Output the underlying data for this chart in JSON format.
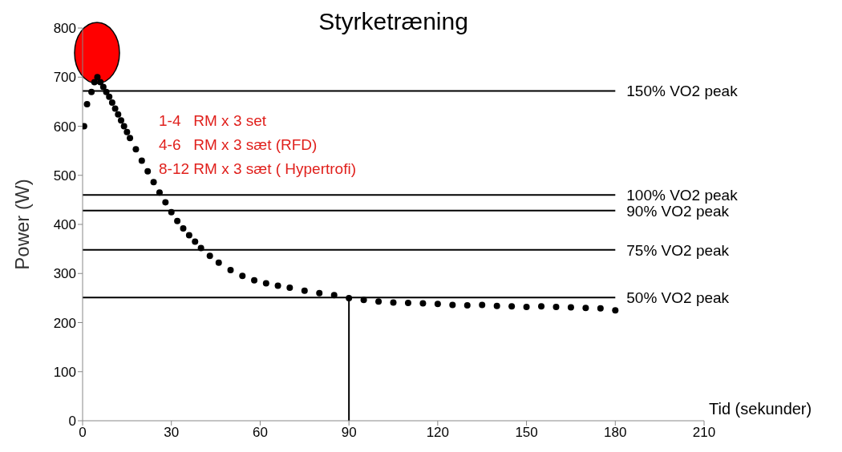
{
  "chart_data": {
    "type": "scatter",
    "title": "Styrketræning",
    "xlabel": "Tid (sekunder)",
    "ylabel": "Power  (W)",
    "annotations": [
      "1-4   RM x 3 set",
      "4-6   RM x 3 sæt (RFD)",
      "8-12 RM x 3 sæt ( Hypertrofi)"
    ],
    "series": [
      {
        "color": "#000000",
        "x": [
          0.5,
          1.5,
          3,
          4,
          5,
          6,
          7,
          8,
          9,
          10,
          11,
          12,
          13,
          14,
          15,
          16,
          18,
          20,
          22,
          24,
          26,
          28,
          30,
          32,
          34,
          36,
          38,
          40,
          43,
          46,
          50,
          54,
          58,
          62,
          66,
          70,
          75,
          80,
          85,
          90,
          95,
          100,
          105,
          110,
          115,
          120,
          125,
          130,
          135,
          140,
          145,
          150,
          155,
          160,
          165,
          170,
          175,
          180
        ],
        "values": [
          600,
          645,
          670,
          690,
          700,
          690,
          680,
          670,
          660,
          648,
          636,
          624,
          612,
          600,
          588,
          576,
          553,
          530,
          508,
          486,
          465,
          445,
          425,
          407,
          392,
          378,
          365,
          352,
          336,
          322,
          307,
          295,
          286,
          280,
          275,
          271,
          265,
          260,
          256,
          250,
          246,
          243,
          241,
          240,
          239,
          238,
          236,
          235,
          236,
          234,
          233,
          232,
          233,
          232,
          231,
          230,
          229,
          225
        ]
      }
    ],
    "xlim": [
      0,
      210
    ],
    "xticks": [
      0,
      30,
      60,
      90,
      120,
      150,
      180,
      210
    ],
    "ylim": [
      0,
      800
    ],
    "yticks": [
      0,
      100,
      200,
      300,
      400,
      500,
      600,
      700,
      800
    ],
    "grid": false,
    "legend": false,
    "marker": "circle",
    "ref_lines": [
      {
        "axis": "y",
        "value": 672,
        "label": "150% VO2 peak"
      },
      {
        "axis": "y",
        "value": 460,
        "label": "100% VO2 peak"
      },
      {
        "axis": "y",
        "value": 428,
        "label": "90% VO2 peak"
      },
      {
        "axis": "y",
        "value": 348,
        "label": "75% VO2 peak"
      },
      {
        "axis": "y",
        "value": 251,
        "label": "50% VO2 peak"
      },
      {
        "axis": "x",
        "value": 90
      }
    ]
  }
}
